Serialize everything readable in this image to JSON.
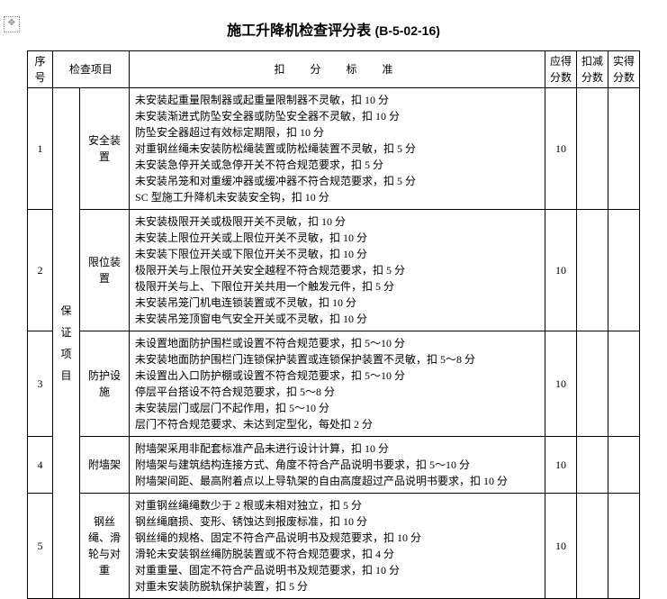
{
  "title_main": "施工升降机检查评分表",
  "title_code": "(B-5-02-16)",
  "headers": {
    "seq": "序号",
    "check_item": "检查项目",
    "criteria": "扣　分　标　准",
    "due_score": "应得分数",
    "deduct_score": "扣减分数",
    "actual_score": "实得分数"
  },
  "category_label": "保证项目",
  "rows": [
    {
      "seq": "1",
      "item": "安全装置",
      "score": "10",
      "criteria": [
        "未安装起重量限制器或起重量限制器不灵敏，扣 10 分",
        "未安装渐进式防坠安全器或防坠安全器不灵敏，扣 10 分",
        "防坠安全器超过有效标定期限，扣 10 分",
        "对重钢丝绳未安装防松绳装置或防松绳装置不灵敏，扣 5 分",
        "未安装急停开关或急停开关不符合规范要求，扣 5 分",
        "未安装吊笼和对重缓冲器或缓冲器不符合规范要求，扣 5 分",
        "SC 型施工升降机未安装安全钩，扣 10 分"
      ]
    },
    {
      "seq": "2",
      "item": "限位装置",
      "score": "10",
      "criteria": [
        "未安装极限开关或极限开关不灵敏，扣 10 分",
        "未安装上限位开关或上限位开关不灵敏，扣 10 分",
        "未安装下限位开关或下限位开关不灵敏，扣 10 分",
        "极限开关与上限位开关安全越程不符合规范要求，扣 5 分",
        "极限开关与上、下限位开关共用一个触发元件，扣 5 分",
        "未安装吊笼门机电连锁装置或不灵敏，扣 10 分",
        "未安装吊笼顶窗电气安全开关或不灵敏，扣 10 分"
      ]
    },
    {
      "seq": "3",
      "item": "防护设施",
      "score": "10",
      "criteria": [
        "未设置地面防护围栏或设置不符合规范要求，扣 5～10 分",
        "未安装地面防护围栏门连锁保护装置或连锁保护装置不灵敏，扣 5～8 分",
        "未设置出入口防护棚或设置不符合规范要求，扣 5～10 分",
        "停层平台搭设不符合规范要求，扣 5～8 分",
        "未安装层门或层门不起作用，扣 5～10 分",
        "层门不符合规范要求、未达到定型化，每处扣 2 分"
      ]
    },
    {
      "seq": "4",
      "item": "附墙架",
      "score": "10",
      "criteria": [
        "附墙架采用非配套标准产品未进行设计计算，扣 10 分",
        "附墙架与建筑结构连接方式、角度不符合产品说明书要求，扣 5～10 分",
        "附墙架间距、最高附着点以上导轨架的自由高度超过产品说明书要求，扣 10 分"
      ]
    },
    {
      "seq": "5",
      "item": "钢丝绳、滑轮与对重",
      "score": "10",
      "criteria": [
        "对重钢丝绳绳数少于 2 根或未相对独立，扣 5 分",
        "钢丝绳磨损、变形、锈蚀达到报废标准，扣 10 分",
        "钢丝绳的规格、固定不符合产品说明书及规范要求，扣 10 分",
        "滑轮未安装钢丝绳防脱装置或不符合规范要求，扣 4 分",
        "对重重量、固定不符合产品说明书及规范要求，扣 10 分",
        "对重未安装防脱轨保护装置，扣 5 分"
      ]
    }
  ]
}
